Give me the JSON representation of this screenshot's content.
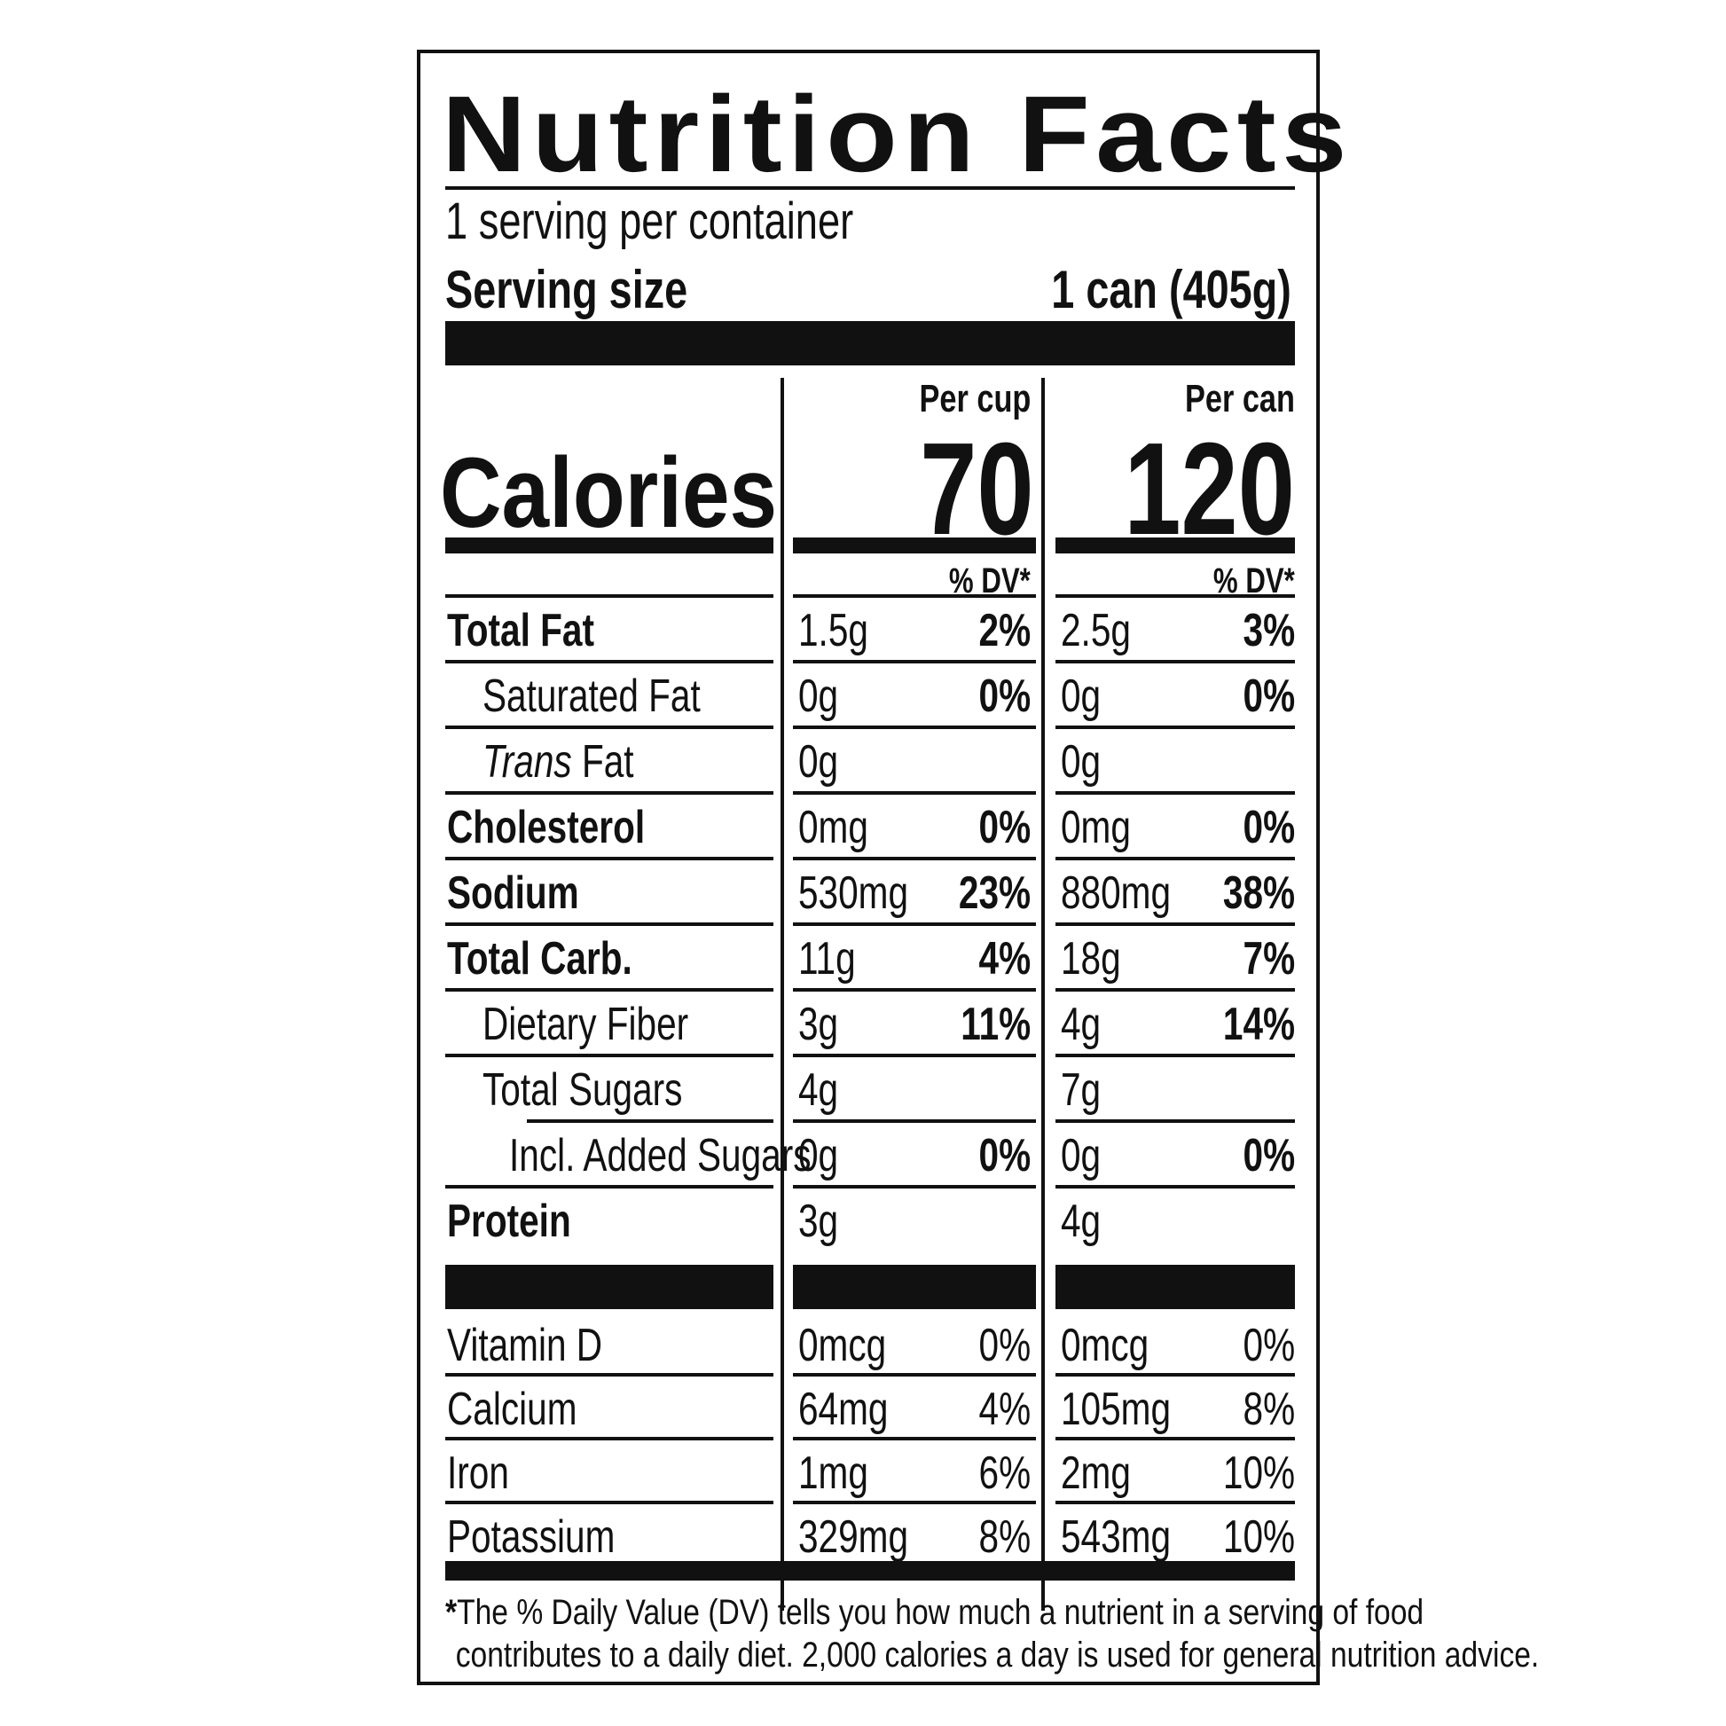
{
  "title": "Nutrition Facts",
  "servings_per_container": "1 serving per container",
  "serving_size_label": "Serving size",
  "serving_size_value": "1 can (405g)",
  "calories_label": "Calories",
  "columns": [
    {
      "header": "Per cup",
      "calories": "70",
      "dv_header": "% DV*"
    },
    {
      "header": "Per can",
      "calories": "120",
      "dv_header": "% DV*"
    }
  ],
  "nutrients": [
    {
      "name": "Total Fat",
      "bold": true,
      "indent": 0,
      "cup_amount": "1.5g",
      "cup_dv": "2%",
      "can_amount": "2.5g",
      "can_dv": "3%"
    },
    {
      "name": "Saturated Fat",
      "bold": false,
      "indent": 1,
      "cup_amount": "0g",
      "cup_dv": "0%",
      "can_amount": "0g",
      "can_dv": "0%"
    },
    {
      "name_italic": "Trans",
      "name": " Fat",
      "bold": false,
      "indent": 1,
      "cup_amount": "0g",
      "cup_dv": "",
      "can_amount": "0g",
      "can_dv": ""
    },
    {
      "name": "Cholesterol",
      "bold": true,
      "indent": 0,
      "cup_amount": "0mg",
      "cup_dv": "0%",
      "can_amount": "0mg",
      "can_dv": "0%"
    },
    {
      "name": "Sodium",
      "bold": true,
      "indent": 0,
      "cup_amount": "530mg",
      "cup_dv": "23%",
      "can_amount": "880mg",
      "can_dv": "38%"
    },
    {
      "name": "Total Carb.",
      "bold": true,
      "indent": 0,
      "cup_amount": "11g",
      "cup_dv": "4%",
      "can_amount": "18g",
      "can_dv": "7%"
    },
    {
      "name": "Dietary Fiber",
      "bold": false,
      "indent": 1,
      "cup_amount": "3g",
      "cup_dv": "11%",
      "can_amount": "4g",
      "can_dv": "14%"
    },
    {
      "name": "Total Sugars",
      "bold": false,
      "indent": 1,
      "cup_amount": "4g",
      "cup_dv": "",
      "can_amount": "7g",
      "can_dv": ""
    },
    {
      "name": "Incl. Added Sugars",
      "bold": false,
      "indent": 2,
      "cup_amount": "0g",
      "cup_dv": "0%",
      "can_amount": "0g",
      "can_dv": "0%"
    },
    {
      "name": "Protein",
      "bold": true,
      "indent": 0,
      "cup_amount": "3g",
      "cup_dv": "",
      "can_amount": "4g",
      "can_dv": ""
    }
  ],
  "vitamins": [
    {
      "name": "Vitamin D",
      "cup_amount": "0mcg",
      "cup_dv": "0%",
      "can_amount": "0mcg",
      "can_dv": "0%"
    },
    {
      "name": "Calcium",
      "cup_amount": "64mg",
      "cup_dv": "4%",
      "can_amount": "105mg",
      "can_dv": "8%"
    },
    {
      "name": "Iron",
      "cup_amount": "1mg",
      "cup_dv": "6%",
      "can_amount": "2mg",
      "can_dv": "10%"
    },
    {
      "name": "Potassium",
      "cup_amount": "329mg",
      "cup_dv": "8%",
      "can_amount": "543mg",
      "can_dv": "10%"
    }
  ],
  "footnote_star": "*",
  "footnote_line1": "The % Daily Value (DV) tells you how much a nutrient in a serving of food",
  "footnote_line2": "contributes to a daily diet. 2,000 calories a day is used for general nutrition advice.",
  "colors": {
    "ink": "#111111",
    "background": "#ffffff"
  }
}
